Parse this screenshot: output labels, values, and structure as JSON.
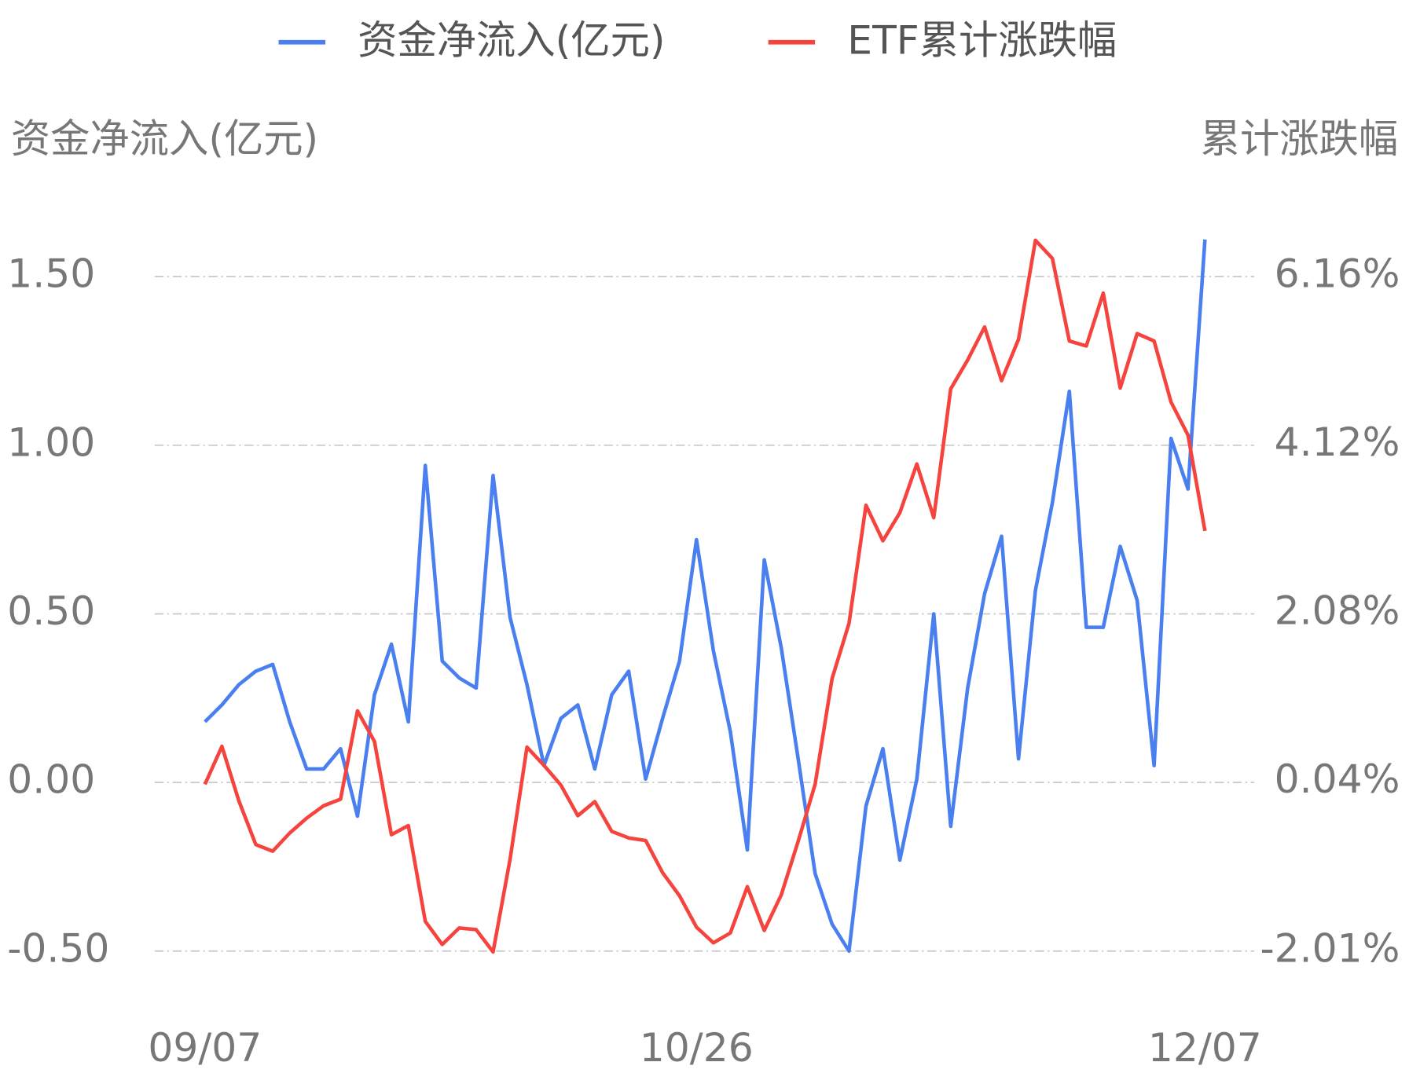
{
  "chart_data": {
    "type": "line",
    "y_label": "资金净流入(亿元)",
    "y2_label": "累计涨跌幅",
    "categories": [
      "09/07",
      null,
      null,
      null,
      null,
      null,
      null,
      null,
      null,
      null,
      null,
      null,
      null,
      null,
      null,
      null,
      null,
      null,
      null,
      null,
      null,
      null,
      null,
      null,
      null,
      null,
      null,
      null,
      null,
      "10/26",
      null,
      null,
      null,
      null,
      null,
      null,
      null,
      null,
      null,
      null,
      null,
      null,
      null,
      null,
      null,
      null,
      null,
      null,
      null,
      null,
      null,
      null,
      null,
      null,
      null,
      null,
      null,
      null,
      null,
      "12/07"
    ],
    "ylim": [
      -0.5,
      1.5
    ],
    "yticks": [
      {
        "value": -0.5,
        "label": "-0.50"
      },
      {
        "value": 0,
        "label": "0.00"
      },
      {
        "value": 0.5,
        "label": "0.50"
      },
      {
        "value": 1,
        "label": "1.00"
      },
      {
        "value": 1.5,
        "label": "1.50"
      }
    ],
    "y2lim": [
      -2.01,
      6.16
    ],
    "y2ticks": [
      {
        "value": -2.01,
        "label": "-2.01%"
      },
      {
        "value": 0.04,
        "label": "0.04%"
      },
      {
        "value": 2.08,
        "label": "2.08%"
      },
      {
        "value": 4.12,
        "label": "4.12%"
      },
      {
        "value": 6.16,
        "label": "6.16%"
      }
    ],
    "grid": true,
    "legend": "top",
    "series": [
      {
        "name": "资金净流入(亿元)",
        "color": "#4a7ff0",
        "axis": "y",
        "values": [
          0.18,
          0.23,
          0.29,
          0.33,
          0.35,
          0.18,
          0.04,
          0.04,
          0.1,
          -0.1,
          0.26,
          0.41,
          0.18,
          0.94,
          0.36,
          0.31,
          0.28,
          0.91,
          0.49,
          0.29,
          0.05,
          0.19,
          0.23,
          0.04,
          0.26,
          0.33,
          0.01,
          0.19,
          0.36,
          0.72,
          0.39,
          0.15,
          -0.2,
          0.66,
          0.4,
          0.07,
          -0.27,
          -0.42,
          -0.5,
          -0.07,
          0.1,
          -0.23,
          0.01,
          0.5,
          -0.13,
          0.28,
          0.56,
          0.73,
          0.07,
          0.57,
          0.83,
          1.16,
          0.46,
          0.46,
          0.7,
          0.54,
          0.05,
          1.02,
          0.87,
          1.61
        ]
      },
      {
        "name": "ETF累计涨跌幅",
        "color": "#f5443e",
        "axis": "y2",
        "values": [
          0.01,
          0.47,
          -0.19,
          -0.72,
          -0.8,
          -0.58,
          -0.4,
          -0.25,
          -0.17,
          0.9,
          0.53,
          -0.6,
          -0.49,
          -1.65,
          -1.93,
          -1.73,
          -1.75,
          -2.02,
          -0.9,
          0.46,
          0.24,
          0.0,
          -0.37,
          -0.2,
          -0.56,
          -0.64,
          -0.67,
          -1.06,
          -1.34,
          -1.72,
          -1.91,
          -1.79,
          -1.23,
          -1.76,
          -1.33,
          -0.68,
          0.01,
          1.29,
          1.96,
          3.39,
          2.96,
          3.3,
          3.89,
          3.24,
          4.8,
          5.15,
          5.55,
          4.9,
          5.4,
          6.6,
          6.38,
          5.38,
          5.32,
          5.96,
          4.81,
          5.47,
          5.38,
          4.64,
          4.24,
          3.08
        ]
      }
    ]
  }
}
